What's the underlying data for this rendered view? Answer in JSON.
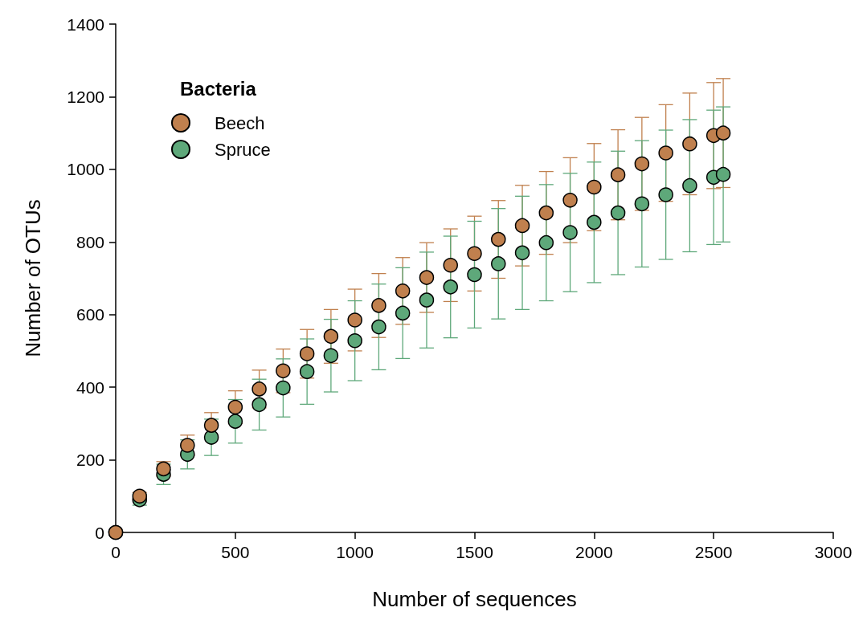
{
  "chart_data": {
    "type": "scatter",
    "xlabel": "Number of sequences",
    "ylabel": "Number of OTUs",
    "legend_title": "Bacteria",
    "legend": "top left",
    "marker": "circle",
    "grid": false,
    "x": [
      0,
      100,
      200,
      300,
      400,
      500,
      600,
      700,
      800,
      900,
      1000,
      1100,
      1200,
      1300,
      1400,
      1500,
      1600,
      1700,
      1800,
      1900,
      2000,
      2100,
      2200,
      2300,
      2400,
      2500,
      2540
    ],
    "xlim": [
      0,
      3000
    ],
    "xticks": [
      0,
      500,
      1000,
      1500,
      2000,
      2500,
      3000
    ],
    "ylim": [
      0,
      1400
    ],
    "yticks": [
      0,
      200,
      400,
      600,
      800,
      1000,
      1200,
      1400
    ],
    "series": [
      {
        "name": "Beech",
        "color": "#c0804e",
        "values": [
          0,
          100,
          175,
          240,
          295,
          345,
          395,
          445,
          492,
          540,
          585,
          625,
          665,
          702,
          736,
          768,
          807,
          845,
          880,
          915,
          951,
          985,
          1015,
          1045,
          1070,
          1093,
          1100
        ],
        "errors": [
          0,
          10,
          20,
          28,
          35,
          45,
          52,
          60,
          67,
          74,
          85,
          88,
          92,
          96,
          100,
          103,
          107,
          111,
          114,
          117,
          120,
          124,
          128,
          133,
          140,
          146,
          150
        ]
      },
      {
        "name": "Spruce",
        "color": "#5ea87a",
        "values": [
          0,
          90,
          160,
          215,
          262,
          306,
          352,
          398,
          443,
          487,
          528,
          566,
          604,
          640,
          676,
          710,
          740,
          770,
          798,
          826,
          854,
          880,
          905,
          930,
          955,
          978,
          986
        ],
        "errors": [
          0,
          15,
          28,
          40,
          50,
          60,
          70,
          80,
          90,
          100,
          110,
          118,
          125,
          132,
          140,
          147,
          152,
          156,
          160,
          163,
          166,
          170,
          174,
          178,
          182,
          185,
          186
        ]
      }
    ]
  }
}
